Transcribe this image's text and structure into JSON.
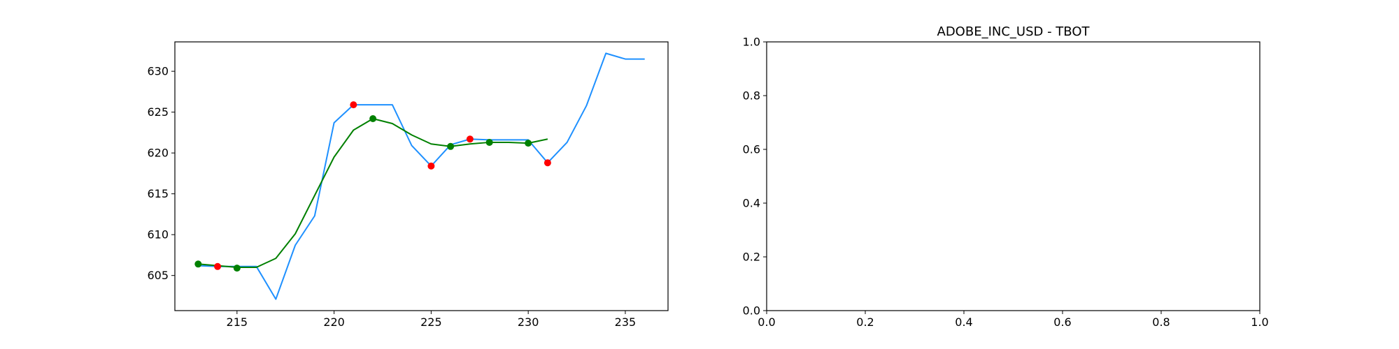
{
  "chart_data": [
    {
      "type": "line",
      "title": "",
      "xlabel": "",
      "ylabel": "",
      "xlim": [
        211.8,
        237.2
      ],
      "ylim": [
        600.7,
        633.6
      ],
      "xticks": [
        215,
        220,
        225,
        230,
        235
      ],
      "yticks": [
        605,
        610,
        615,
        620,
        625,
        630
      ],
      "x": [
        213,
        214,
        215,
        216,
        217,
        218,
        219,
        220,
        221,
        222,
        223,
        224,
        225,
        226,
        227,
        228,
        229,
        230,
        231,
        232,
        233,
        234,
        235,
        236
      ],
      "series": [
        {
          "style": "line",
          "color": "#1e90ff",
          "values": [
            606.2,
            606.1,
            606.1,
            606.1,
            602.1,
            608.7,
            612.3,
            623.7,
            625.9,
            625.9,
            625.9,
            620.9,
            618.4,
            621.0,
            621.7,
            621.6,
            621.6,
            621.6,
            618.8,
            621.3,
            625.8,
            632.2,
            631.5,
            631.5
          ]
        },
        {
          "style": "line",
          "color": "#008000",
          "x": [
            213,
            214,
            215,
            216,
            217,
            218,
            219,
            220,
            221,
            222,
            223,
            224,
            225,
            226,
            227,
            228,
            229,
            230,
            231
          ],
          "values": [
            606.4,
            606.2,
            606.0,
            606.0,
            607.1,
            610.1,
            614.8,
            619.5,
            622.8,
            624.2,
            623.6,
            622.2,
            621.1,
            620.8,
            621.1,
            621.3,
            621.3,
            621.2,
            621.7
          ]
        },
        {
          "style": "markers",
          "color": "#ff0000",
          "x": [
            214,
            221,
            225,
            227,
            231
          ],
          "values": [
            606.1,
            625.9,
            618.4,
            621.7,
            618.8
          ]
        },
        {
          "style": "markers",
          "color": "#008000",
          "x": [
            213,
            215,
            222,
            226,
            228,
            230
          ],
          "values": [
            606.4,
            605.9,
            624.2,
            620.8,
            621.3,
            621.2
          ]
        }
      ]
    },
    {
      "type": "line",
      "title": "ADOBE_INC_USD - TBOT",
      "xlabel": "",
      "ylabel": "",
      "xlim": [
        0,
        1
      ],
      "ylim": [
        0,
        1
      ],
      "xticks": [
        "0.0",
        "0.2",
        "0.4",
        "0.6",
        "0.8",
        "1.0"
      ],
      "yticks": [
        "0.0",
        "0.2",
        "0.4",
        "0.6",
        "0.8",
        "1.0"
      ],
      "series": []
    }
  ]
}
